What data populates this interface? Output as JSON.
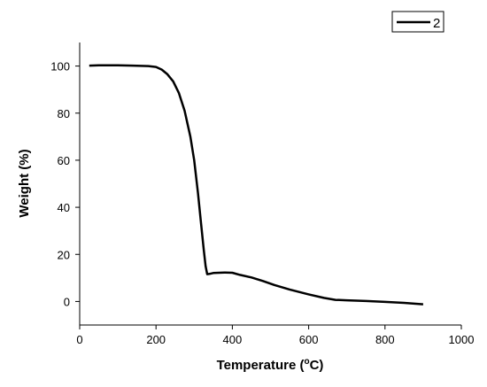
{
  "chart_data": {
    "type": "line",
    "xlabel": "Temperature (",
    "xlabel_sup": "o",
    "xlabel_suffix": "C)",
    "ylabel": "Weight (%)",
    "xlim": [
      0,
      1000
    ],
    "ylim": [
      -10,
      110
    ],
    "x_ticks": [
      "0",
      "200",
      "400",
      "600",
      "800",
      "1000"
    ],
    "y_ticks": [
      "0",
      "20",
      "40",
      "60",
      "80",
      "100"
    ],
    "grid": false,
    "legend_position": "top-right",
    "series": [
      {
        "name": "2",
        "color": "#000000",
        "points": [
          [
            25,
            100.2
          ],
          [
            50,
            100.3
          ],
          [
            100,
            100.3
          ],
          [
            140,
            100.2
          ],
          [
            180,
            100.0
          ],
          [
            200,
            99.6
          ],
          [
            215,
            98.5
          ],
          [
            230,
            96.5
          ],
          [
            245,
            93.5
          ],
          [
            260,
            88.5
          ],
          [
            275,
            81
          ],
          [
            290,
            70
          ],
          [
            300,
            60
          ],
          [
            310,
            46
          ],
          [
            318,
            33
          ],
          [
            325,
            22
          ],
          [
            330,
            15
          ],
          [
            334,
            11.6
          ],
          [
            340,
            11.7
          ],
          [
            350,
            12.1
          ],
          [
            380,
            12.3
          ],
          [
            400,
            12.2
          ],
          [
            420,
            11.3
          ],
          [
            450,
            10.2
          ],
          [
            480,
            8.7
          ],
          [
            510,
            7
          ],
          [
            550,
            5.1
          ],
          [
            600,
            3.0
          ],
          [
            640,
            1.5
          ],
          [
            670,
            0.7
          ],
          [
            700,
            0.5
          ],
          [
            750,
            0.2
          ],
          [
            800,
            -0.2
          ],
          [
            850,
            -0.6
          ],
          [
            900,
            -1.2
          ]
        ]
      }
    ]
  }
}
